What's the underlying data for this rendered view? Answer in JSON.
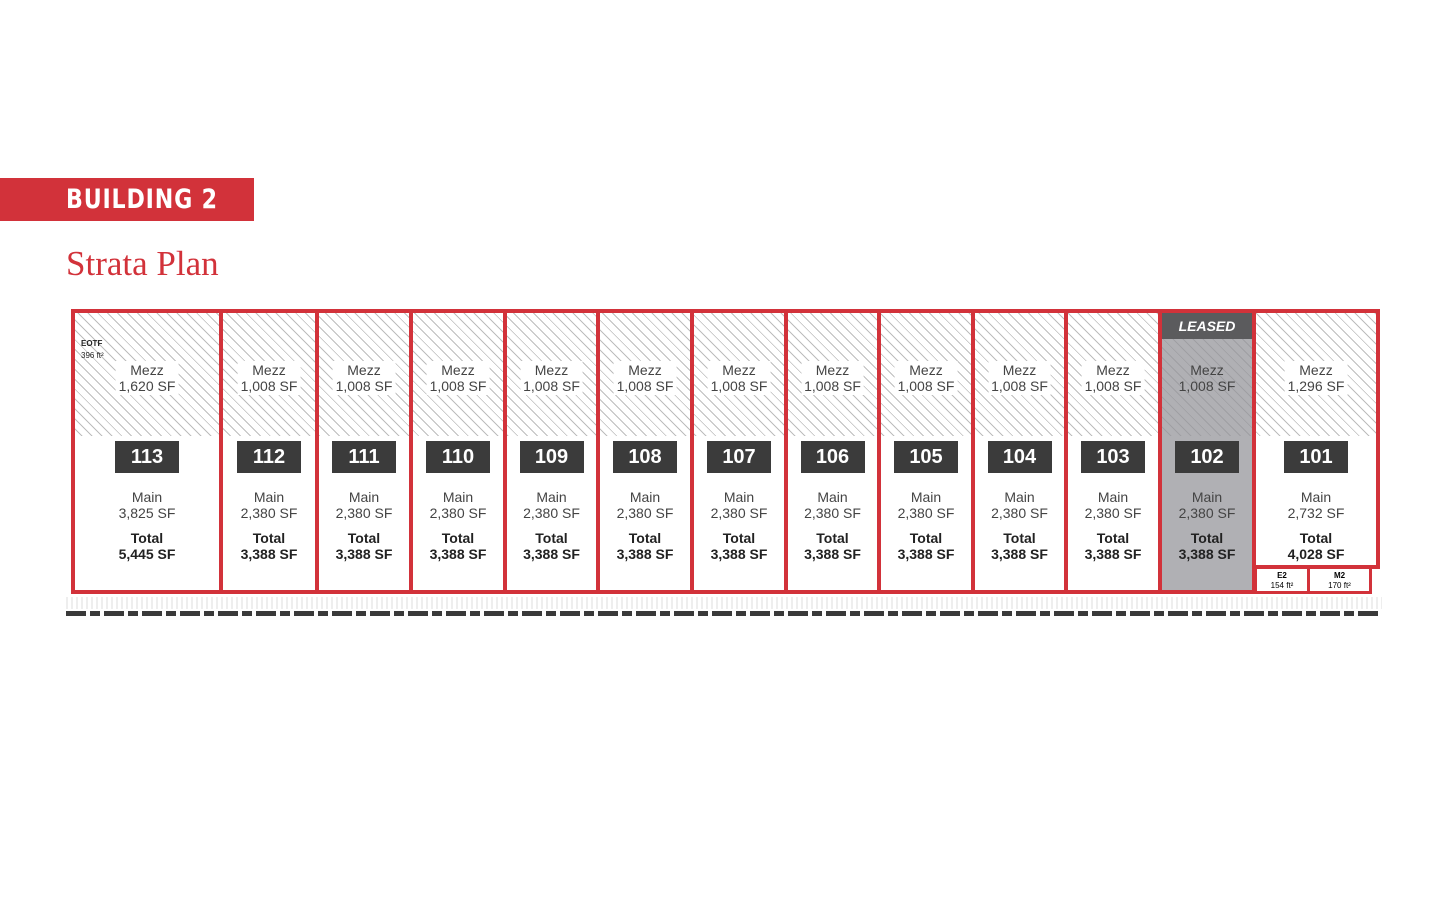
{
  "header": {
    "building": "BUILDING 2",
    "subtitle": "Strata Plan"
  },
  "colors": {
    "accent": "#d2323a",
    "label_bg": "#3b3b3b",
    "leased": "#96969b"
  },
  "units": [
    {
      "id": "113",
      "mezz_label": "Mezz",
      "mezz": "1,620 SF",
      "main_label": "Main",
      "main": "3,825 SF",
      "total_label": "Total",
      "total": "5,445 SF",
      "leased": false
    },
    {
      "id": "112",
      "mezz_label": "Mezz",
      "mezz": "1,008 SF",
      "main_label": "Main",
      "main": "2,380 SF",
      "total_label": "Total",
      "total": "3,388 SF",
      "leased": false
    },
    {
      "id": "111",
      "mezz_label": "Mezz",
      "mezz": "1,008 SF",
      "main_label": "Main",
      "main": "2,380 SF",
      "total_label": "Total",
      "total": "3,388 SF",
      "leased": false
    },
    {
      "id": "110",
      "mezz_label": "Mezz",
      "mezz": "1,008 SF",
      "main_label": "Main",
      "main": "2,380 SF",
      "total_label": "Total",
      "total": "3,388 SF",
      "leased": false
    },
    {
      "id": "109",
      "mezz_label": "Mezz",
      "mezz": "1,008 SF",
      "main_label": "Main",
      "main": "2,380 SF",
      "total_label": "Total",
      "total": "3,388 SF",
      "leased": false
    },
    {
      "id": "108",
      "mezz_label": "Mezz",
      "mezz": "1,008 SF",
      "main_label": "Main",
      "main": "2,380 SF",
      "total_label": "Total",
      "total": "3,388 SF",
      "leased": false
    },
    {
      "id": "107",
      "mezz_label": "Mezz",
      "mezz": "1,008 SF",
      "main_label": "Main",
      "main": "2,380 SF",
      "total_label": "Total",
      "total": "3,388 SF",
      "leased": false
    },
    {
      "id": "106",
      "mezz_label": "Mezz",
      "mezz": "1,008 SF",
      "main_label": "Main",
      "main": "2,380 SF",
      "total_label": "Total",
      "total": "3,388 SF",
      "leased": false
    },
    {
      "id": "105",
      "mezz_label": "Mezz",
      "mezz": "1,008 SF",
      "main_label": "Main",
      "main": "2,380 SF",
      "total_label": "Total",
      "total": "3,388 SF",
      "leased": false
    },
    {
      "id": "104",
      "mezz_label": "Mezz",
      "mezz": "1,008 SF",
      "main_label": "Main",
      "main": "2,380 SF",
      "total_label": "Total",
      "total": "3,388 SF",
      "leased": false
    },
    {
      "id": "103",
      "mezz_label": "Mezz",
      "mezz": "1,008 SF",
      "main_label": "Main",
      "main": "2,380 SF",
      "total_label": "Total",
      "total": "3,388 SF",
      "leased": false
    },
    {
      "id": "102",
      "mezz_label": "Mezz",
      "mezz": "1,008 SF",
      "main_label": "Main",
      "main": "2,380 SF",
      "total_label": "Total",
      "total": "3,388 SF",
      "leased": true,
      "status": "LEASED"
    },
    {
      "id": "101",
      "mezz_label": "Mezz",
      "mezz": "1,296 SF",
      "main_label": "Main",
      "main": "2,732 SF",
      "total_label": "Total",
      "total": "4,028 SF",
      "leased": false
    }
  ],
  "rooms": {
    "eotf": {
      "name": "EOTF",
      "area": "396 ft²"
    },
    "e2": {
      "name": "E2",
      "area": "154 ft²"
    },
    "m2": {
      "name": "M2",
      "area": "170 ft²"
    }
  }
}
